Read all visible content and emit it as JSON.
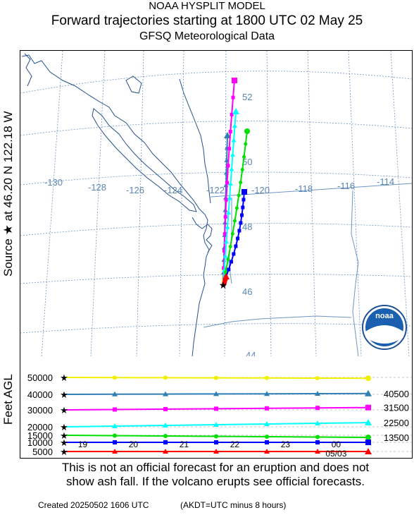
{
  "header": {
    "title1": "NOAA HYSPLIT MODEL",
    "title2": "Forward trajectories starting at 1800 UTC 02 May 25",
    "title3": "GFSQ Meteorological Data"
  },
  "side_label": "Source ★  at   46.20 N   122.18 W",
  "vertical_axis_label": "Feet AGL",
  "map": {
    "lon_labels": [
      "-130",
      "-128",
      "-126",
      "-124",
      "-122",
      "-120",
      "-118",
      "-116",
      "-114"
    ],
    "lat_labels": [
      "52",
      "50",
      "48",
      "46",
      "44"
    ],
    "source": {
      "lat": 46.2,
      "lon": -122.18
    },
    "logo_text": "noaa"
  },
  "chart_data": {
    "type": "line",
    "x_tick_labels": [
      "19",
      "20",
      "21",
      "22",
      "23",
      "00",
      "05/03"
    ],
    "y_tick_labels": [
      "50000",
      "40000",
      "30000",
      "20000",
      "15000",
      "10000",
      "5000"
    ],
    "right_labels": [
      "40500",
      "31500",
      "22500",
      "13500"
    ],
    "ylabel": "Feet AGL",
    "series": [
      {
        "color": "#f0f000",
        "marker": "circle",
        "start_ft": 50000,
        "end_ft": 49500
      },
      {
        "color": "#2f7fb5",
        "marker": "triangle",
        "start_ft": 40000,
        "end_ft": 40500
      },
      {
        "color": "#ff00ff",
        "marker": "square",
        "start_ft": 30000,
        "end_ft": 31500
      },
      {
        "color": "#00ffff",
        "marker": "triangle",
        "start_ft": 20000,
        "end_ft": 22500
      },
      {
        "color": "#00e000",
        "marker": "circle",
        "start_ft": 15000,
        "end_ft": 13500
      },
      {
        "color": "#0000ff",
        "marker": "square",
        "start_ft": 10000,
        "end_ft": 10000
      },
      {
        "color": "#ff0000",
        "marker": "triangle",
        "start_ft": 5000,
        "end_ft": 5000
      }
    ]
  },
  "footer": {
    "disclaimer1": "This is not an official forecast for an eruption and does not",
    "disclaimer2": "show ash fall. If the volcano erupts see official forecasts.",
    "created": "Created 20250502 1606 UTC",
    "time_note": "(AKDT=UTC minus 8 hours)"
  }
}
